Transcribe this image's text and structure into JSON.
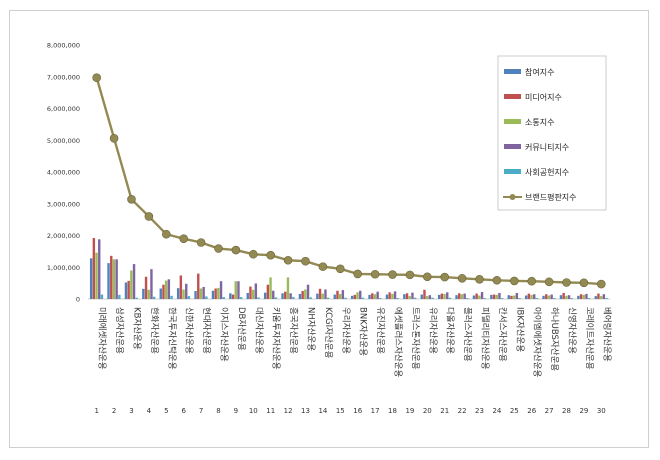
{
  "chart_data": {
    "type": "bar",
    "title": "",
    "xlabel": "",
    "ylabel": "",
    "ylim": [
      0,
      8000000
    ],
    "yticks": [
      "0",
      "1,000,000",
      "2,000,000",
      "3,000,000",
      "4,000,000",
      "5,000,000",
      "6,000,000",
      "7,000,000",
      "8,000,000"
    ],
    "legend_position": "right",
    "grid": false,
    "ranks": [
      "1",
      "2",
      "3",
      "4",
      "5",
      "6",
      "7",
      "8",
      "9",
      "10",
      "11",
      "12",
      "13",
      "14",
      "15",
      "16",
      "17",
      "18",
      "19",
      "20",
      "21",
      "22",
      "23",
      "24",
      "25",
      "26",
      "27",
      "28",
      "29",
      "30"
    ],
    "categories": [
      "미래에셋자산운용",
      "삼성자산운용",
      "KB자산운용",
      "한화자산운용",
      "한국투자신탁운용",
      "신한자산운용",
      "현대자산운용",
      "이지스자산운용",
      "DB자산운용",
      "대신자산운용",
      "키움투자자산운용",
      "흥국자산운용",
      "NH자산운용",
      "KCGI자산운용",
      "우리자산운용",
      "BNK자산운용",
      "유진자산운용",
      "에셋플러스자산운용",
      "트러스톤자산운용",
      "유리자산운용",
      "다올자산운용",
      "플러스자산운용",
      "피델리티자산운용",
      "칸서스자산운용",
      "IBK자산운용",
      "아이엠에셋자산운용",
      "하나UBS자산운용",
      "신영자산운용",
      "코레이트자산운용",
      "베어링자산운용"
    ],
    "series": [
      {
        "name": "참여지수",
        "kind": "bar",
        "color": "#4f81bd",
        "values": [
          1280000,
          1130000,
          520000,
          320000,
          330000,
          340000,
          250000,
          260000,
          180000,
          190000,
          200000,
          180000,
          160000,
          170000,
          140000,
          100000,
          130000,
          140000,
          150000,
          140000,
          130000,
          120000,
          110000,
          130000,
          120000,
          110000,
          100000,
          120000,
          100000,
          90000
        ]
      },
      {
        "name": "미디어지수",
        "kind": "bar",
        "color": "#c0504d",
        "values": [
          1920000,
          1360000,
          570000,
          700000,
          450000,
          740000,
          800000,
          330000,
          140000,
          390000,
          450000,
          230000,
          250000,
          320000,
          260000,
          130000,
          180000,
          210000,
          180000,
          290000,
          170000,
          180000,
          170000,
          140000,
          100000,
          170000,
          150000,
          190000,
          150000,
          170000
        ]
      },
      {
        "name": "소통지수",
        "kind": "bar",
        "color": "#9bbb59",
        "values": [
          1460000,
          1250000,
          900000,
          290000,
          580000,
          300000,
          330000,
          350000,
          560000,
          290000,
          680000,
          680000,
          300000,
          170000,
          160000,
          210000,
          150000,
          160000,
          90000,
          90000,
          160000,
          150000,
          110000,
          130000,
          110000,
          130000,
          110000,
          100000,
          130000,
          90000
        ]
      },
      {
        "name": "커뮤니티지수",
        "kind": "bar",
        "color": "#8064a2",
        "values": [
          1880000,
          1250000,
          1100000,
          940000,
          620000,
          480000,
          380000,
          560000,
          560000,
          490000,
          260000,
          180000,
          450000,
          300000,
          280000,
          260000,
          230000,
          240000,
          200000,
          120000,
          210000,
          170000,
          220000,
          190000,
          190000,
          150000,
          140000,
          120000,
          160000,
          150000
        ]
      },
      {
        "name": "사회공헌지수",
        "kind": "bar",
        "color": "#4bacc6",
        "values": [
          140000,
          130000,
          40000,
          70000,
          100000,
          90000,
          80000,
          60000,
          60000,
          50000,
          50000,
          60000,
          50000,
          40000,
          40000,
          40000,
          30000,
          30000,
          40000,
          40000,
          40000,
          30000,
          30000,
          30000,
          30000,
          30000,
          30000,
          30000,
          30000,
          30000
        ]
      },
      {
        "name": "브랜드평판지수",
        "kind": "line",
        "color": "#938953",
        "values": [
          6970000,
          5060000,
          3140000,
          2600000,
          2040000,
          1900000,
          1780000,
          1590000,
          1540000,
          1410000,
          1380000,
          1220000,
          1190000,
          1020000,
          950000,
          790000,
          780000,
          770000,
          760000,
          700000,
          690000,
          650000,
          620000,
          590000,
          570000,
          560000,
          540000,
          520000,
          510000,
          470000
        ]
      }
    ]
  }
}
